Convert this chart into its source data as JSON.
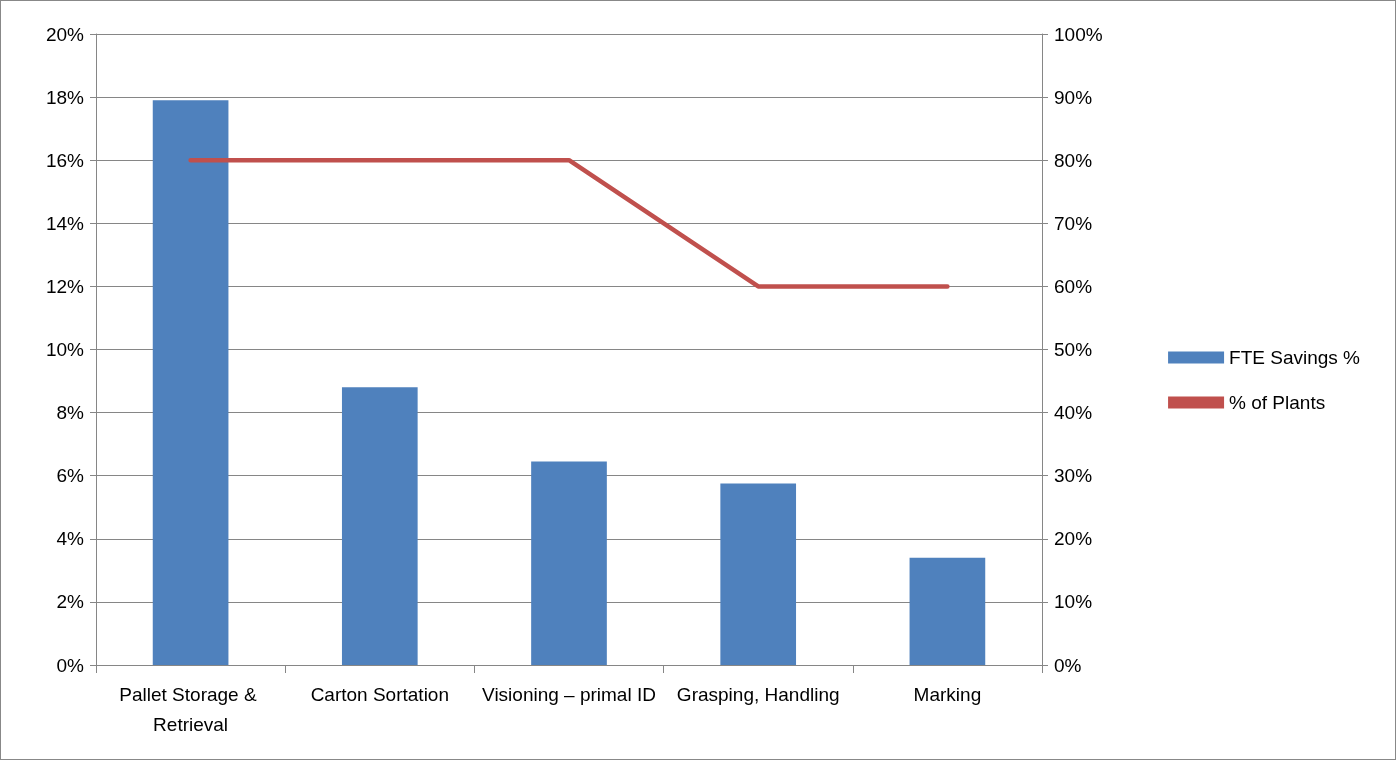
{
  "chart_data": {
    "type": "bar",
    "categories": [
      "Pallet Storage & Retrieval",
      "Carton Sortation",
      "Visioning – primal ID",
      "Grasping, Handling",
      "Marking"
    ],
    "series": [
      {
        "name": "FTE Savings %",
        "color": "#4f81bd",
        "values": [
          17.9,
          8.8,
          6.45,
          5.75,
          3.4
        ]
      },
      {
        "name": "% of Plants",
        "type": "line",
        "axis": "y2",
        "color": "#c0504d",
        "values": [
          80,
          80,
          80,
          60,
          60
        ]
      }
    ],
    "ylim": [
      0,
      20
    ],
    "yticks": [
      {
        "value": 0,
        "label": "0%"
      },
      {
        "value": 2,
        "label": "2%"
      },
      {
        "value": 4,
        "label": "4%"
      },
      {
        "value": 6,
        "label": "6%"
      },
      {
        "value": 8,
        "label": "8%"
      },
      {
        "value": 10,
        "label": "10%"
      },
      {
        "value": 12,
        "label": "12%"
      },
      {
        "value": 14,
        "label": "14%"
      },
      {
        "value": 16,
        "label": "16%"
      },
      {
        "value": 18,
        "label": "18%"
      },
      {
        "value": 20,
        "label": "20%"
      }
    ],
    "y2lim": [
      0,
      100
    ],
    "y2ticks": [
      {
        "value": 0,
        "label": "0%"
      },
      {
        "value": 10,
        "label": "10%"
      },
      {
        "value": 20,
        "label": "20%"
      },
      {
        "value": 30,
        "label": "30%"
      },
      {
        "value": 40,
        "label": "40%"
      },
      {
        "value": 50,
        "label": "50%"
      },
      {
        "value": 60,
        "label": "60%"
      },
      {
        "value": 70,
        "label": "70%"
      },
      {
        "value": 80,
        "label": "80%"
      },
      {
        "value": 90,
        "label": "90%"
      },
      {
        "value": 100,
        "label": "100%"
      }
    ],
    "grid": "y",
    "legend": "right",
    "marker": "none",
    "line_style": "solid"
  }
}
